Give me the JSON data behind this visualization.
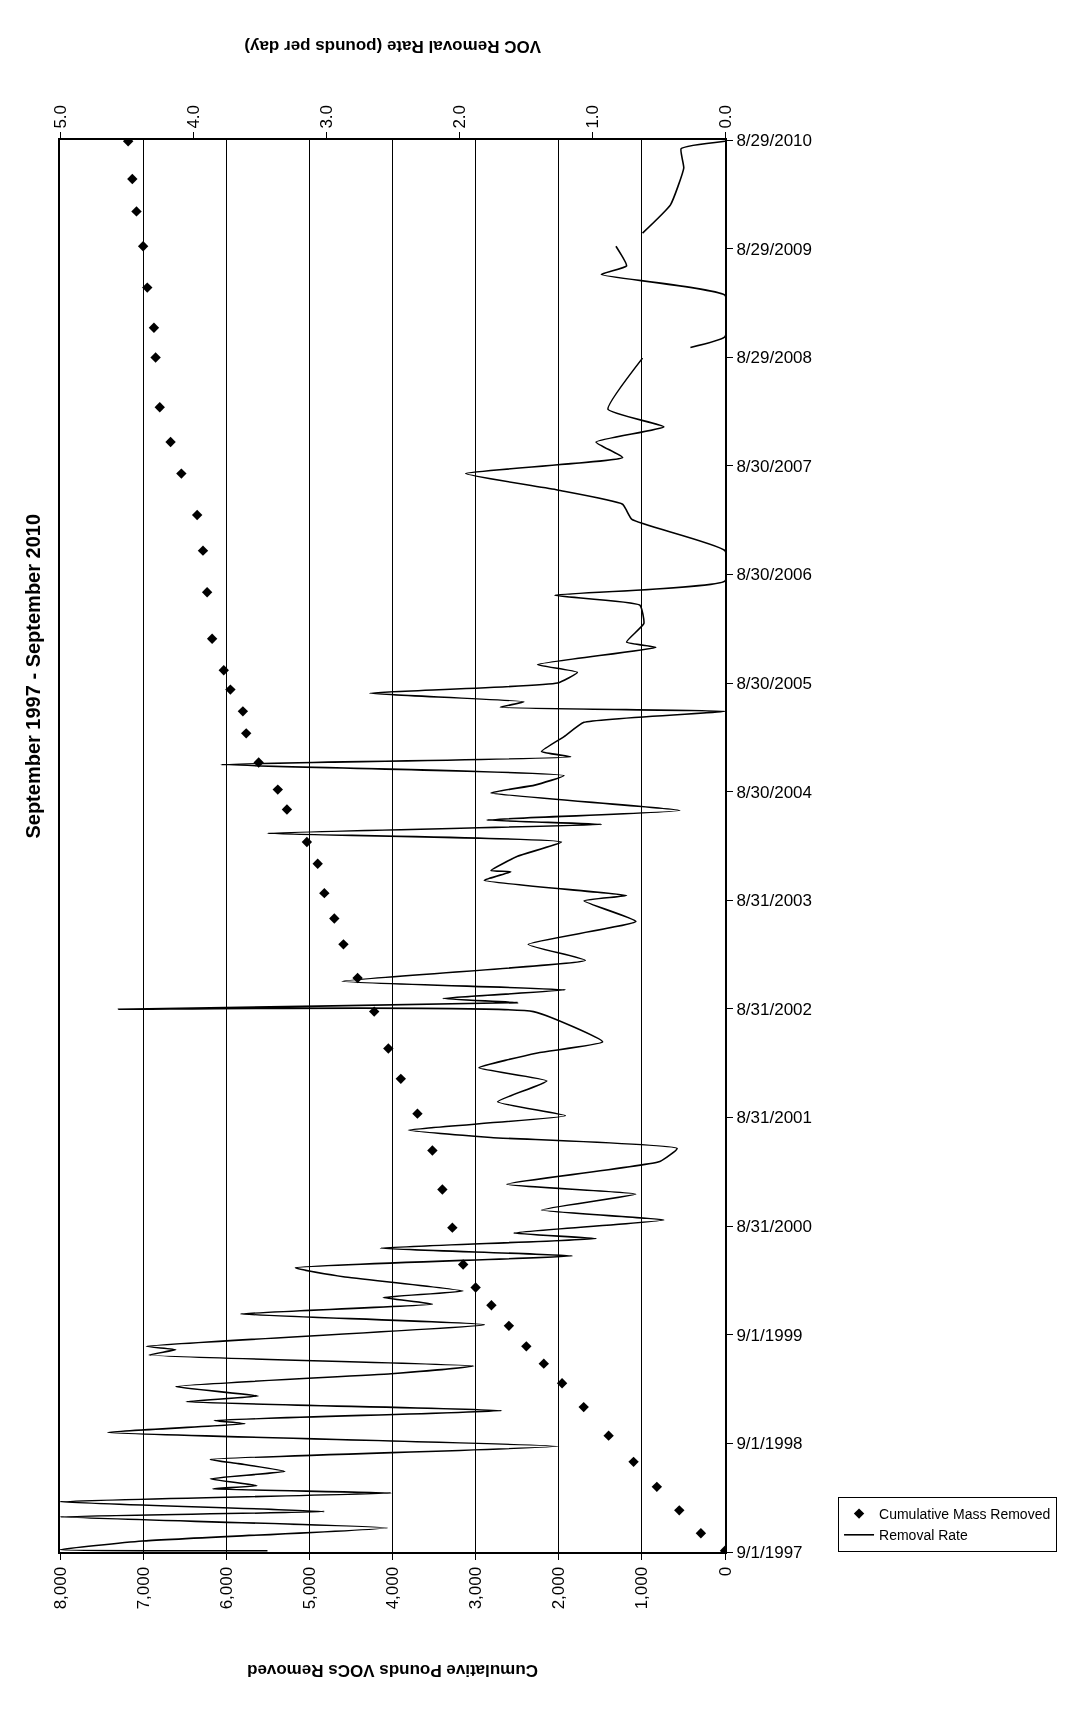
{
  "chart_data": {
    "type": "line",
    "orientation": "horizontal",
    "title": "September 1997 - September 2010",
    "xlabel": "Cumulative Pounds VOCs Removed",
    "x2label": "VOC Removal Rate (pounds per day)",
    "xlim": [
      8000,
      0
    ],
    "xticks": [
      {
        "value": 8000,
        "label": "8,000"
      },
      {
        "value": 7000,
        "label": "7,000"
      },
      {
        "value": 6000,
        "label": "6,000"
      },
      {
        "value": 5000,
        "label": "5,000"
      },
      {
        "value": 4000,
        "label": "4,000"
      },
      {
        "value": 3000,
        "label": "3,000"
      },
      {
        "value": 2000,
        "label": "2,000"
      },
      {
        "value": 1000,
        "label": "1,000"
      },
      0
    ],
    "x2lim": [
      5,
      0
    ],
    "x2ticks": [
      {
        "value": 5,
        "label": "5.0"
      },
      {
        "value": 4,
        "label": "4.0"
      },
      {
        "value": 3,
        "label": "3.0"
      },
      {
        "value": 2,
        "label": "2.0"
      },
      {
        "value": 1,
        "label": "1.0"
      },
      {
        "value": 0,
        "label": "0.0"
      }
    ],
    "ylim": [
      "1997-09-01",
      "2010-08-29"
    ],
    "yticks": [
      {
        "value": "1997-09-01",
        "label": "9/1/1997"
      },
      {
        "value": "1998-09-01",
        "label": "9/1/1998"
      },
      {
        "value": "1999-09-01",
        "label": "9/1/1999"
      },
      {
        "value": "2000-08-31",
        "label": "8/31/2000"
      },
      {
        "value": "2001-08-31",
        "label": "8/31/2001"
      },
      {
        "value": "2002-08-31",
        "label": "8/31/2002"
      },
      {
        "value": "2003-08-31",
        "label": "8/31/2003"
      },
      {
        "value": "2004-08-30",
        "label": "8/30/2004"
      },
      {
        "value": "2005-08-30",
        "label": "8/30/2005"
      },
      {
        "value": "2006-08-30",
        "label": "8/30/2006"
      },
      {
        "value": "2007-08-30",
        "label": "8/30/2007"
      },
      {
        "value": "2008-08-29",
        "label": "8/29/2008"
      },
      {
        "value": "2009-08-29",
        "label": "8/29/2009"
      },
      {
        "value": "2010-08-29",
        "label": "8/29/2010"
      }
    ],
    "grid": "x",
    "legend": "right",
    "series": [
      {
        "name": "Cumulative Mass Removed",
        "type": "scatter",
        "marker": "diamond",
        "color": "#000000",
        "x": [
          "1997-09-05",
          "1997-11-03",
          "1998-01-19",
          "1998-04-08",
          "1998-07-01",
          "1998-09-27",
          "1999-01-01",
          "1999-03-22",
          "1999-05-27",
          "1999-07-24",
          "1999-10-01",
          "1999-12-09",
          "2000-02-07",
          "2000-04-24",
          "2000-08-26",
          "2001-01-01",
          "2001-05-12",
          "2001-09-13",
          "2002-01-08",
          "2002-04-20",
          "2002-08-22",
          "2002-12-13",
          "2003-04-05",
          "2003-07-01",
          "2003-09-24",
          "2004-01-01",
          "2004-03-14",
          "2004-07-01",
          "2004-09-06",
          "2004-12-06",
          "2005-03-14",
          "2005-05-27",
          "2005-08-08",
          "2005-10-12",
          "2006-01-26",
          "2006-07-01",
          "2006-11-18",
          "2007-03-18",
          "2007-08-04",
          "2007-11-18",
          "2008-03-14",
          "2008-08-28",
          "2008-12-06",
          "2009-04-20",
          "2009-09-06",
          "2010-01-01",
          "2010-04-20",
          "2010-08-25"
        ],
        "values": [
          0,
          290,
          550,
          820,
          1100,
          1400,
          1700,
          1960,
          2180,
          2390,
          2600,
          2810,
          3000,
          3150,
          3280,
          3400,
          3520,
          3700,
          3900,
          4050,
          4220,
          4420,
          4590,
          4700,
          4820,
          4900,
          5030,
          5270,
          5380,
          5610,
          5760,
          5800,
          5950,
          6030,
          6170,
          6230,
          6280,
          6350,
          6540,
          6670,
          6800,
          6850,
          6870,
          6950,
          7000,
          7080,
          7130,
          7180
        ]
      },
      {
        "name": "Removal Rate",
        "axis": "x2",
        "line_style": "solid",
        "color": "#000000",
        "x": [
          "1997-09-05",
          "1997-09-09",
          "1997-10-08",
          "1997-11-21",
          "1997-12-28",
          "1998-01-15",
          "1998-02-17",
          "1998-03-18",
          "1998-04-01",
          "1998-04-12",
          "1998-05-05",
          "1998-05-30",
          "1998-06-25",
          "1998-07-09",
          "1998-08-22",
          "1998-10-08",
          "1998-11-06",
          "1998-11-17",
          "1998-12-20",
          "1999-01-19",
          "1999-02-07",
          "1999-03-11",
          "1999-04-23",
          "1999-05-19",
          "1999-06-25",
          "1999-07-13",
          "1999-07-24",
          "1999-10-05",
          "1999-11-10",
          "1999-12-13",
          "2000-01-04",
          "2000-01-26",
          "2000-03-14",
          "2000-04-13",
          "2000-05-23",
          "2000-06-18",
          "2000-07-20",
          "2000-08-08",
          "2000-09-21",
          "2000-10-24",
          "2000-12-17",
          "2001-01-19",
          "2001-04-05",
          "2001-05-19",
          "2001-06-25",
          "2001-07-20",
          "2001-09-06",
          "2001-10-23",
          "2002-01-01",
          "2002-02-14",
          "2002-04-05",
          "2002-05-12",
          "2002-08-22",
          "2002-08-30",
          "2002-09-21",
          "2002-10-05",
          "2002-11-03",
          "2002-12-02",
          "2003-02-10",
          "2003-04-05",
          "2003-06-21",
          "2003-08-29",
          "2003-09-16",
          "2003-11-06",
          "2003-12-05",
          "2003-12-09",
          "2004-01-26",
          "2004-03-14",
          "2004-04-12",
          "2004-05-12",
          "2004-05-27",
          "2004-06-28",
          "2004-08-26",
          "2004-09-21",
          "2004-10-23",
          "2004-11-29",
          "2004-12-25",
          "2005-01-12",
          "2005-03-03",
          "2005-04-20",
          "2005-05-27",
          "2005-06-10",
          "2005-06-28",
          "2005-07-27",
          "2005-08-30",
          "2005-10-05",
          "2005-10-31",
          "2005-12-28",
          "2006-01-15",
          "2006-03-18",
          "2006-05-19",
          "2006-06-21",
          "2006-08-08",
          "2006-11-18",
          "2007-03-03",
          "2007-04-23",
          "2007-06-10",
          "2007-08-04",
          "2007-09-27",
          "2007-11-18",
          "2008-01-08",
          "2008-03-07",
          "2008-08-26",
          "2008-09-13",
          "2008-10-01",
          "2008-11-06",
          "2009-03-25",
          "2009-06-03",
          "2009-07-02",
          "2009-09-06",
          "2009-09-28",
          "2009-10-20",
          "2010-01-23",
          "2010-05-27",
          "2010-07-31",
          "2010-08-25"
        ],
        "values": [
          3.44,
          5.0,
          4.38,
          2.54,
          5.0,
          3.01,
          5.0,
          2.51,
          3.85,
          3.52,
          3.87,
          3.31,
          3.66,
          3.87,
          1.25,
          4.64,
          3.61,
          3.84,
          1.68,
          4.05,
          3.51,
          4.13,
          2.51,
          1.89,
          4.33,
          4.13,
          4.35,
          1.81,
          3.64,
          2.2,
          2.57,
          1.97,
          2.87,
          3.23,
          1.15,
          2.59,
          0.97,
          1.59,
          0.46,
          1.38,
          0.67,
          1.64,
          0.49,
          0.36,
          1.76,
          2.38,
          1.2,
          1.71,
          1.34,
          1.85,
          1.41,
          0.92,
          1.44,
          4.56,
          1.56,
          2.12,
          1.2,
          2.88,
          1.05,
          1.48,
          0.67,
          1.06,
          0.74,
          1.81,
          1.61,
          1.76,
          1.56,
          1.23,
          3.44,
          0.93,
          1.79,
          0.34,
          1.76,
          1.43,
          1.21,
          3.79,
          1.16,
          1.38,
          1.21,
          1.06,
          0.0,
          1.69,
          1.51,
          2.67,
          1.26,
          1.11,
          1.41,
          0.52,
          0.74,
          0.61,
          0.64,
          1.28,
          0.0,
          0.0,
          0.7,
          0.77,
          1.26,
          1.95,
          0.77,
          0.97,
          0.46,
          0.88,
          0.62,
          null,
          0.26,
          0.0,
          0.0,
          0.93,
          0.74,
          0.82,
          null,
          0.62,
          0.41,
          0.31,
          0.33,
          0.0
        ]
      }
    ]
  }
}
